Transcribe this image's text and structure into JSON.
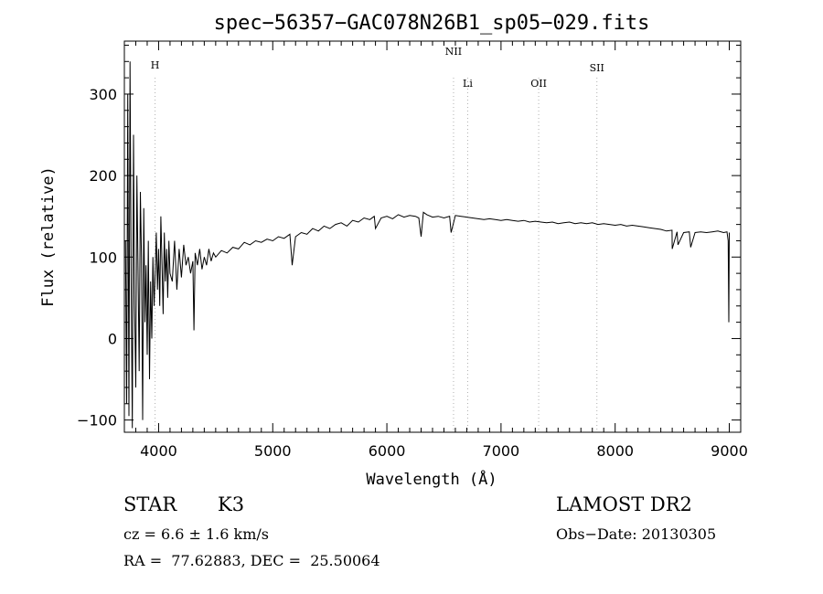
{
  "chart_data": {
    "type": "line",
    "title": "spec−56357−GAC078N26B1_sp05−029.fits",
    "xlabel": "Wavelength (Å)",
    "ylabel": "Flux (relative)",
    "xlim": [
      3700,
      9100
    ],
    "ylim": [
      -115,
      365
    ],
    "xticks": [
      4000,
      5000,
      6000,
      7000,
      8000,
      9000
    ],
    "yticks": [
      -100,
      0,
      100,
      200,
      300
    ],
    "grid": false,
    "line_color": "#000000",
    "series": [
      {
        "x": [
          3710,
          3720,
          3730,
          3740,
          3750,
          3760,
          3770,
          3780,
          3790,
          3800,
          3810,
          3820,
          3830,
          3840,
          3850,
          3860,
          3870,
          3880,
          3890,
          3900,
          3910,
          3920,
          3930,
          3940,
          3950,
          3960,
          3970,
          3980,
          3990,
          4000,
          4010,
          4020,
          4030,
          4040,
          4050,
          4060,
          4070,
          4080,
          4090,
          4100,
          4120,
          4140,
          4160,
          4180,
          4200,
          4220,
          4240,
          4260,
          4280,
          4300,
          4310,
          4320,
          4340,
          4360,
          4380,
          4400,
          4420,
          4440,
          4460,
          4480,
          4500,
          4550,
          4600,
          4650,
          4700,
          4750,
          4800,
          4850,
          4900,
          4950,
          5000,
          5050,
          5100,
          5150,
          5170,
          5200,
          5250,
          5300,
          5350,
          5400,
          5450,
          5500,
          5550,
          5600,
          5650,
          5700,
          5750,
          5800,
          5850,
          5890,
          5900,
          5950,
          6000,
          6050,
          6100,
          6150,
          6200,
          6250,
          6280,
          6300,
          6320,
          6350,
          6400,
          6450,
          6500,
          6550,
          6563,
          6600,
          6650,
          6700,
          6750,
          6800,
          6850,
          6900,
          6950,
          7000,
          7050,
          7100,
          7150,
          7200,
          7250,
          7300,
          7350,
          7400,
          7450,
          7500,
          7550,
          7600,
          7650,
          7700,
          7750,
          7800,
          7850,
          7900,
          7950,
          8000,
          8050,
          8100,
          8150,
          8200,
          8250,
          8300,
          8350,
          8400,
          8450,
          8498,
          8500,
          8542,
          8550,
          8600,
          8650,
          8662,
          8700,
          8750,
          8800,
          8850,
          8900,
          8950,
          8980,
          8990,
          8996,
          9000
        ],
        "y": [
          120,
          -80,
          300,
          -95,
          340,
          60,
          -110,
          250,
          40,
          -60,
          200,
          80,
          -40,
          180,
          100,
          -100,
          160,
          20,
          90,
          -20,
          120,
          -50,
          70,
          0,
          100,
          40,
          80,
          130,
          60,
          110,
          40,
          150,
          90,
          30,
          130,
          70,
          110,
          50,
          120,
          80,
          70,
          120,
          60,
          110,
          75,
          115,
          90,
          100,
          80,
          95,
          10,
          105,
          90,
          110,
          85,
          100,
          90,
          110,
          95,
          105,
          100,
          108,
          105,
          112,
          110,
          118,
          115,
          120,
          118,
          122,
          120,
          125,
          123,
          128,
          90,
          125,
          130,
          128,
          135,
          132,
          138,
          135,
          140,
          142,
          138,
          145,
          143,
          148,
          146,
          150,
          135,
          148,
          150,
          147,
          152,
          149,
          151,
          150,
          148,
          125,
          155,
          152,
          149,
          150,
          148,
          150,
          130,
          151,
          150,
          149,
          148,
          147,
          146,
          147,
          146,
          145,
          146,
          145,
          144,
          145,
          143,
          144,
          143,
          142,
          143,
          141,
          142,
          143,
          141,
          142,
          141,
          142,
          140,
          141,
          140,
          139,
          140,
          138,
          139,
          138,
          137,
          136,
          135,
          134,
          132,
          133,
          110,
          131,
          115,
          130,
          131,
          112,
          130,
          131,
          130,
          131,
          132,
          130,
          131,
          120,
          20,
          130
        ]
      }
    ],
    "line_markers": [
      {
        "label": "H",
        "x": 3969,
        "color": "#b0b0b0"
      },
      {
        "label": "NII",
        "x": 6584,
        "color": "#b0b0b0"
      },
      {
        "label": "Li",
        "x": 6708,
        "color": "#b0b0b0"
      },
      {
        "label": "OII",
        "x": 7330,
        "color": "#b0b0b0"
      },
      {
        "label": "SII",
        "x": 7840,
        "color": "#b0b0b0"
      }
    ]
  },
  "info": {
    "class_label": "STAR",
    "subclass": "K3",
    "survey": "LAMOST DR2",
    "cz_line": "cz = 6.6 ± 1.6 km/s",
    "obs_date": "Obs−Date: 20130305",
    "coords": "RA =  77.62883, DEC =  25.50064"
  }
}
